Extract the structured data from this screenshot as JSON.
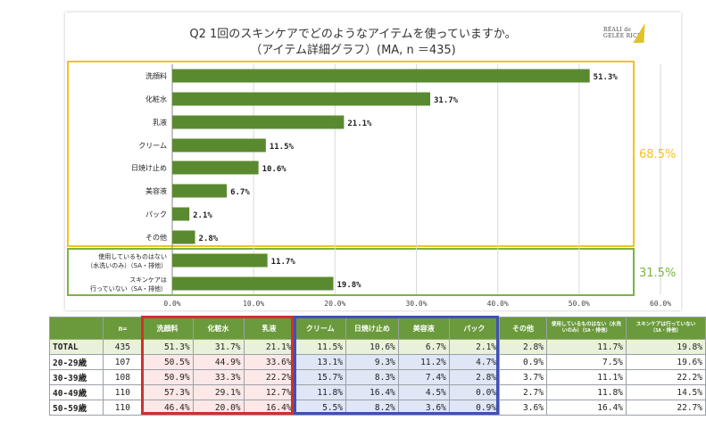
{
  "title_line1": "Q2 1回のスキンケアでどのようなアイテムを使っていますか。",
  "title_line2": "（アイテム詳細グラフ）(MA, n ＝435)",
  "logo": {
    "line1": "RÉALI de",
    "line2": "GELÉE RICH"
  },
  "colors": {
    "bar": "#5a8a2f",
    "yellow_box": "#f0c419",
    "green_box": "#7cb342",
    "red_box": "#d32f2f",
    "blue_box": "#3f51b5",
    "header": "#6a9a3c"
  },
  "chart_data": {
    "type": "bar",
    "orientation": "horizontal",
    "categories": [
      "洗顔料",
      "化粧水",
      "乳液",
      "クリーム",
      "日焼け止め",
      "美容液",
      "パック",
      "その他",
      "使用しているものはない\n（水洗いのみ）（SA・排他）",
      "スキンケアは\n行っていない（SA・排他）"
    ],
    "values": [
      51.3,
      31.7,
      21.1,
      11.5,
      10.6,
      6.7,
      2.1,
      2.8,
      11.7,
      19.8
    ],
    "value_labels": [
      "51.3%",
      "31.7%",
      "21.1%",
      "11.5%",
      "10.6%",
      "6.7%",
      "2.1%",
      "2.8%",
      "11.7%",
      "19.8%"
    ],
    "xlim": [
      0,
      60
    ],
    "xticks": [
      "0.0%",
      "10.0%",
      "20.0%",
      "30.0%",
      "40.0%",
      "50.0%",
      "60.0%"
    ],
    "groups": [
      {
        "label": "68.5%",
        "from": 0,
        "to": 7
      },
      {
        "label": "31.5%",
        "from": 8,
        "to": 9
      }
    ],
    "grid": true
  },
  "table": {
    "headers": [
      "",
      "n=",
      "洗顔料",
      "化粧水",
      "乳液",
      "クリーム",
      "日焼け止め",
      "美容液",
      "パック",
      "その他",
      "使用しているものはない（水洗いのみ）（SA・排他）",
      "スキンケアは行っていない（SA・排他）"
    ],
    "rows": [
      {
        "label": "TOTAL",
        "n": "435",
        "vals": [
          "51.3%",
          "31.7%",
          "21.1%",
          "11.5%",
          "10.6%",
          "6.7%",
          "2.1%",
          "2.8%",
          "11.7%",
          "19.8%"
        ]
      },
      {
        "label": "20-29歳",
        "n": "107",
        "vals": [
          "50.5%",
          "44.9%",
          "33.6%",
          "13.1%",
          "9.3%",
          "11.2%",
          "4.7%",
          "0.9%",
          "7.5%",
          "19.6%"
        ]
      },
      {
        "label": "30-39歳",
        "n": "108",
        "vals": [
          "50.9%",
          "33.3%",
          "22.2%",
          "15.7%",
          "8.3%",
          "7.4%",
          "2.8%",
          "3.7%",
          "11.1%",
          "22.2%"
        ]
      },
      {
        "label": "40-49歳",
        "n": "110",
        "vals": [
          "57.3%",
          "29.1%",
          "12.7%",
          "11.8%",
          "16.4%",
          "4.5%",
          "0.0%",
          "2.7%",
          "11.8%",
          "14.5%"
        ]
      },
      {
        "label": "50-59歳",
        "n": "110",
        "vals": [
          "46.4%",
          "20.0%",
          "16.4%",
          "5.5%",
          "8.2%",
          "3.6%",
          "0.9%",
          "3.6%",
          "16.4%",
          "22.7%"
        ]
      }
    ]
  }
}
